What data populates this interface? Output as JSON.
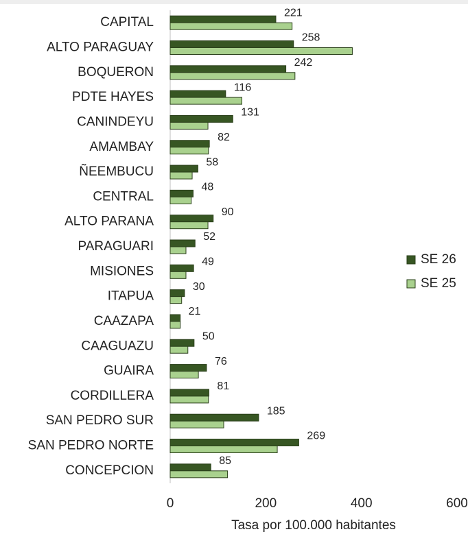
{
  "chart_data": {
    "type": "hbar",
    "xlabel": "Tasa por 100.000 habitantes",
    "categories": [
      "CAPITAL",
      "ALTO PARAGUAY",
      "BOQUERON",
      "PDTE HAYES",
      "CANINDEYU",
      "AMAMBAY",
      "ÑEEMBUCU",
      "CENTRAL",
      "ALTO PARANA",
      "PARAGUARI",
      "MISIONES",
      "ITAPUA",
      "CAAZAPA",
      "CAAGUAZU",
      "GUAIRA",
      "CORDILLERA",
      "SAN PEDRO SUR",
      "SAN PEDRO NORTE",
      "CONCEPCION"
    ],
    "series": [
      {
        "name": "SE 26",
        "color": "#375623",
        "values": [
          221,
          258,
          242,
          116,
          131,
          82,
          58,
          48,
          90,
          52,
          49,
          30,
          21,
          50,
          76,
          81,
          185,
          269,
          85
        ]
      },
      {
        "name": "SE 25",
        "color": "#a9d18e",
        "values": [
          255,
          381,
          261,
          150,
          79,
          80,
          46,
          44,
          79,
          33,
          33,
          24,
          21,
          37,
          59,
          80,
          112,
          224,
          120
        ]
      }
    ],
    "xlim": [
      0,
      600
    ],
    "xticks": [
      0,
      200,
      400,
      600
    ],
    "legend": "right"
  }
}
